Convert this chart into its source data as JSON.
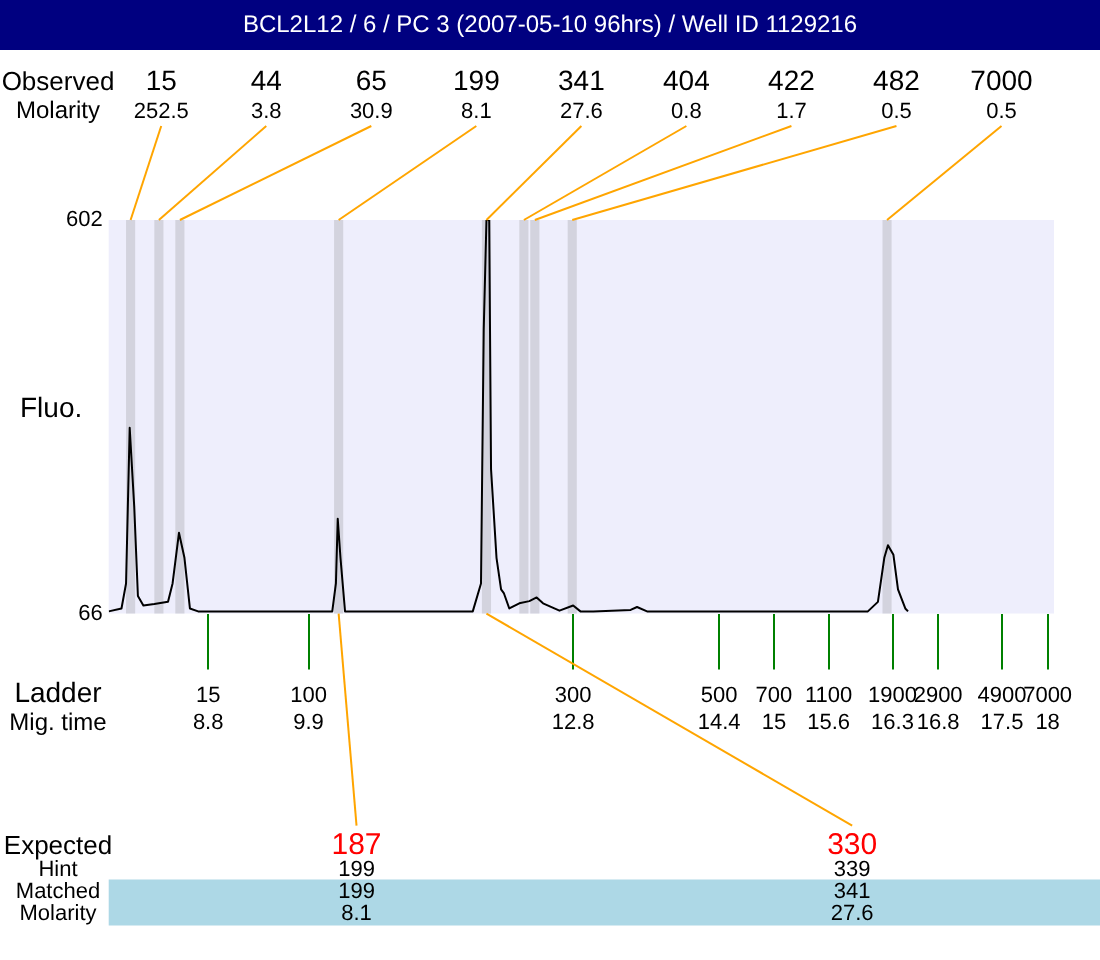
{
  "chart_data": {
    "type": "line",
    "title": "BCL2L12 / 6 / PC 3 (2007-05-10 96hrs) / Well ID 1129216",
    "ylabel": "Fluo.",
    "x": [
      7.71,
      7.85,
      7.9,
      7.94,
      7.99,
      8.03,
      8.09,
      8.21,
      8.36,
      8.41,
      8.48,
      8.54,
      8.6,
      8.69,
      9.72,
      10.16,
      10.2,
      10.22,
      10.25,
      10.3,
      11.7,
      11.79,
      11.82,
      11.85,
      11.88,
      11.9,
      11.96,
      12.01,
      12.04,
      12.1,
      12.21,
      12.32,
      12.4,
      12.47,
      12.65,
      12.8,
      12.88,
      13.02,
      13.43,
      13.5,
      13.61,
      13.9,
      16.03,
      16.14,
      16.21,
      16.25,
      16.31,
      16.36,
      16.44,
      16.47
    ],
    "series": [
      {
        "color": "#000000",
        "values": [
          69,
          73,
          107,
          319,
          211,
          90,
          77,
          79,
          82,
          107,
          176,
          142,
          73,
          69,
          69,
          69,
          107,
          195,
          142,
          69,
          69,
          107,
          453,
          602,
          602,
          263,
          142,
          99,
          94,
          73,
          80,
          83,
          88,
          80,
          70,
          77,
          69,
          69,
          71,
          75,
          69,
          69,
          69,
          82,
          142,
          159,
          146,
          99,
          73,
          69
        ]
      }
    ],
    "xlim": [
      7.71,
      18.07
    ],
    "xticks": [
      8.8,
      9.9,
      12.8,
      14.4,
      15,
      15.6,
      16.3,
      16.8,
      17.5,
      18
    ],
    "ylim": [
      66,
      602
    ],
    "yticks": [
      66,
      602
    ],
    "grid": false,
    "legend": false,
    "bands": [
      {
        "axis": "x",
        "from": 7.9,
        "to": 8.0,
        "label": "15",
        "color": "#d3d3de"
      },
      {
        "axis": "x",
        "from": 8.21,
        "to": 8.31,
        "label": "44",
        "color": "#d3d3de"
      },
      {
        "axis": "x",
        "from": 8.44,
        "to": 8.54,
        "label": "65",
        "color": "#d3d3de"
      },
      {
        "axis": "x",
        "from": 10.18,
        "to": 10.28,
        "label": "199",
        "color": "#d3d3de"
      },
      {
        "axis": "x",
        "from": 11.8,
        "to": 11.9,
        "label": "341",
        "color": "#d3d3de"
      },
      {
        "axis": "x",
        "from": 12.21,
        "to": 12.31,
        "label": "404",
        "color": "#d3d3de"
      },
      {
        "axis": "x",
        "from": 12.33,
        "to": 12.43,
        "label": "422",
        "color": "#d3d3de"
      },
      {
        "axis": "x",
        "from": 12.74,
        "to": 12.84,
        "label": "482",
        "color": "#d3d3de"
      },
      {
        "axis": "x",
        "from": 16.19,
        "to": 16.29,
        "label": "7000",
        "color": "#d3d3de"
      }
    ],
    "annotations": [
      "Observed",
      "Molarity",
      "Ladder",
      "Mig. time",
      "Expected",
      "Hint",
      "Matched",
      "Molarity",
      {
        "text": "252.5",
        "x": 7.95,
        "y": 602
      },
      {
        "text": "3.8",
        "x": 8.26,
        "y": 602
      },
      {
        "text": "30.9",
        "x": 8.49,
        "y": 602
      },
      {
        "text": "8.1",
        "x": 10.23,
        "y": 602
      },
      {
        "text": "27.6",
        "x": 11.85,
        "y": 602
      },
      {
        "text": "0.8",
        "x": 12.26,
        "y": 602
      },
      {
        "text": "1.7",
        "x": 12.38,
        "y": 602
      },
      {
        "text": "0.5",
        "x": 12.79,
        "y": 602
      },
      {
        "text": "0.5",
        "x": 16.24,
        "y": 602
      },
      "15",
      "100",
      "300",
      "500",
      "700",
      "1100",
      "1900",
      "2900",
      "4900",
      "7000",
      {
        "text": "187",
        "x": 10.23,
        "y": 66
      },
      "199",
      "199",
      "8.1",
      {
        "text": "330",
        "x": 11.85,
        "y": 66
      },
      "339",
      "341",
      "27.6"
    ]
  }
}
